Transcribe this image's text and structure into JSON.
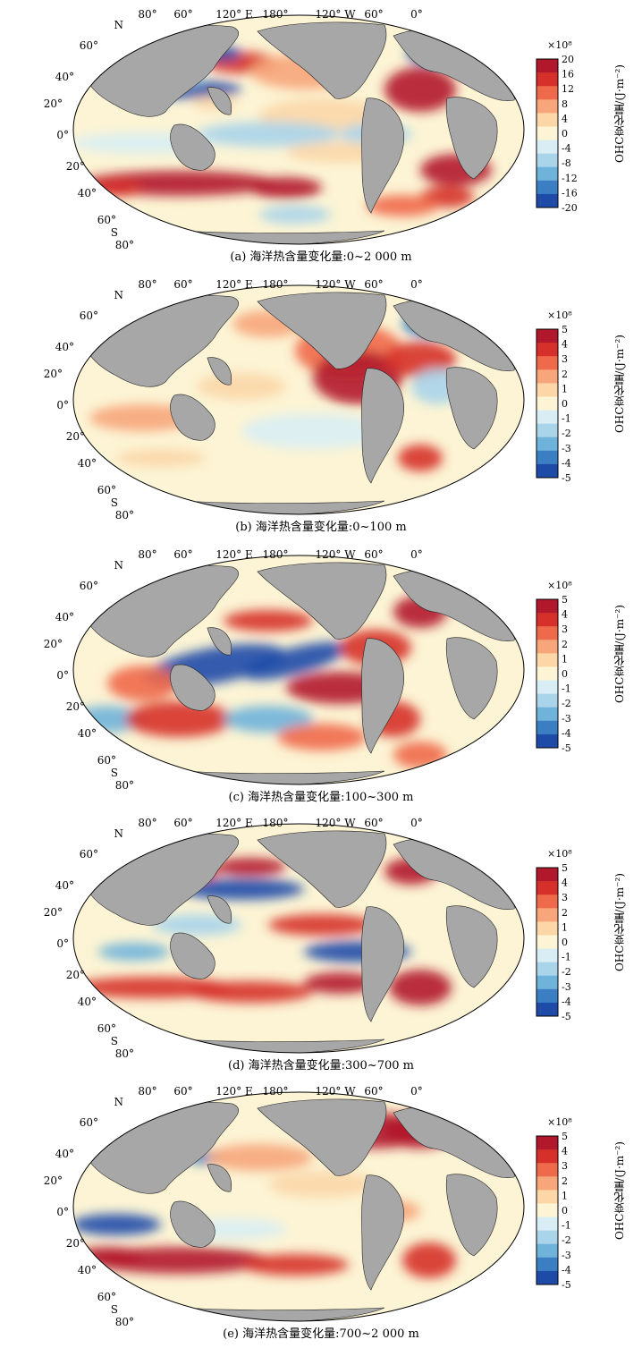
{
  "panels": [
    {
      "id": "a",
      "caption": "(a) 海洋热含量变化量:0~2 000 m",
      "colorbar": {
        "multiplier": "×10⁸",
        "label": "OHC变化量/(J·m⁻²)",
        "ticks": [
          "20",
          "16",
          "12",
          "8",
          "4",
          "0",
          "-4",
          "-8",
          "-12",
          "-16",
          "-20"
        ]
      }
    },
    {
      "id": "b",
      "caption": "(b) 海洋热含量变化量:0~100 m",
      "colorbar": {
        "multiplier": "×10⁸",
        "label": "OHC变化量/(J·m⁻²)",
        "ticks": [
          "5",
          "4",
          "3",
          "2",
          "1",
          "0",
          "-1",
          "-2",
          "-3",
          "-4",
          "-5"
        ]
      }
    },
    {
      "id": "c",
      "caption": "(c) 海洋热含量变化量:100~300 m",
      "colorbar": {
        "multiplier": "×10⁸",
        "label": "OHC变化量/(J·m⁻²)",
        "ticks": [
          "5",
          "4",
          "3",
          "2",
          "1",
          "0",
          "-1",
          "-2",
          "-3",
          "-4",
          "-5"
        ]
      }
    },
    {
      "id": "d",
      "caption": "(d) 海洋热含量变化量:300~700 m",
      "colorbar": {
        "multiplier": "×10⁸",
        "label": "OHC变化量/(J·m⁻²)",
        "ticks": [
          "5",
          "4",
          "3",
          "2",
          "1",
          "0",
          "-1",
          "-2",
          "-3",
          "-4",
          "-5"
        ]
      }
    },
    {
      "id": "e",
      "caption": "(e) 海洋热含量变化量:700~2 000 m",
      "colorbar": {
        "multiplier": "×10⁸",
        "label": "OHC变化量/(J·m⁻²)",
        "ticks": [
          "5",
          "4",
          "3",
          "2",
          "1",
          "0",
          "-1",
          "-2",
          "-3",
          "-4",
          "-5"
        ]
      }
    }
  ],
  "lon_labels": [
    "80°",
    "60°",
    "120° E",
    "180°",
    "120° W",
    "60°",
    "0°"
  ],
  "lat_labels": [
    "N",
    "60°",
    "40°",
    "20°",
    "0°",
    "20°",
    "40°",
    "60°",
    "S",
    "80°"
  ],
  "colors": {
    "scale": [
      "#b2182b",
      "#d6302a",
      "#ef6a4a",
      "#f7a57a",
      "#fbd7a8",
      "#fcf4d4",
      "#d9eef4",
      "#a9d4ea",
      "#6fb2da",
      "#3b7fc2",
      "#1f4ba8"
    ],
    "land": "#a7a7a7",
    "ocean_bg": "#fcf4d4"
  }
}
